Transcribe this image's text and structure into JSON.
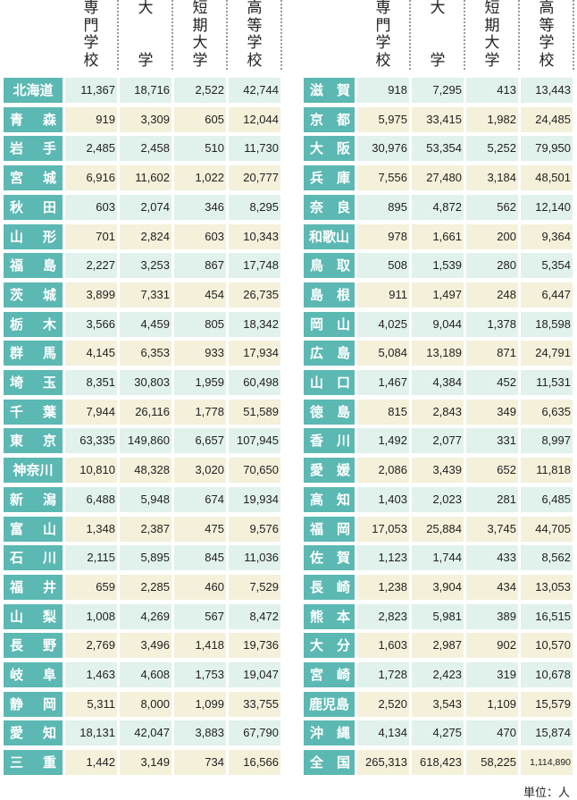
{
  "headers": [
    [
      "専",
      "門",
      "学",
      "校"
    ],
    [
      "大",
      "学"
    ],
    [
      "短",
      "期",
      "大",
      "学"
    ],
    [
      "高",
      "等",
      "学",
      "校"
    ]
  ],
  "left": [
    [
      "北海道",
      "11,367",
      "18,716",
      "2,522",
      "42,744"
    ],
    [
      "青　森",
      "919",
      "3,309",
      "605",
      "12,044"
    ],
    [
      "岩　手",
      "2,485",
      "2,458",
      "510",
      "11,730"
    ],
    [
      "宮　城",
      "6,916",
      "11,602",
      "1,022",
      "20,777"
    ],
    [
      "秋　田",
      "603",
      "2,074",
      "346",
      "8,295"
    ],
    [
      "山　形",
      "701",
      "2,824",
      "603",
      "10,343"
    ],
    [
      "福　島",
      "2,227",
      "3,253",
      "867",
      "17,748"
    ],
    [
      "茨　城",
      "3,899",
      "7,331",
      "454",
      "26,735"
    ],
    [
      "栃　木",
      "3,566",
      "4,459",
      "805",
      "18,342"
    ],
    [
      "群　馬",
      "4,145",
      "6,353",
      "933",
      "17,934"
    ],
    [
      "埼　玉",
      "8,351",
      "30,803",
      "1,959",
      "60,498"
    ],
    [
      "千　葉",
      "7,944",
      "26,116",
      "1,778",
      "51,589"
    ],
    [
      "東　京",
      "63,335",
      "149,860",
      "6,657",
      "107,945"
    ],
    [
      "神奈川",
      "10,810",
      "48,328",
      "3,020",
      "70,650"
    ],
    [
      "新　潟",
      "6,488",
      "5,948",
      "674",
      "19,934"
    ],
    [
      "富　山",
      "1,348",
      "2,387",
      "475",
      "9,576"
    ],
    [
      "石　川",
      "2,115",
      "5,895",
      "845",
      "11,036"
    ],
    [
      "福　井",
      "659",
      "2,285",
      "460",
      "7,529"
    ],
    [
      "山　梨",
      "1,008",
      "4,269",
      "567",
      "8,472"
    ],
    [
      "長　野",
      "2,769",
      "3,496",
      "1,418",
      "19,736"
    ],
    [
      "岐　阜",
      "1,463",
      "4,608",
      "1,753",
      "19,047"
    ],
    [
      "静　岡",
      "5,311",
      "8,000",
      "1,099",
      "33,755"
    ],
    [
      "愛　知",
      "18,131",
      "42,047",
      "3,883",
      "67,790"
    ],
    [
      "三　重",
      "1,442",
      "3,149",
      "734",
      "16,566"
    ]
  ],
  "right": [
    [
      "滋　賀",
      "918",
      "7,295",
      "413",
      "13,443"
    ],
    [
      "京　都",
      "5,975",
      "33,415",
      "1,982",
      "24,485"
    ],
    [
      "大　阪",
      "30,976",
      "53,354",
      "5,252",
      "79,950"
    ],
    [
      "兵　庫",
      "7,556",
      "27,480",
      "3,184",
      "48,501"
    ],
    [
      "奈　良",
      "895",
      "4,872",
      "562",
      "12,140"
    ],
    [
      "和歌山",
      "978",
      "1,661",
      "200",
      "9,364"
    ],
    [
      "鳥　取",
      "508",
      "1,539",
      "280",
      "5,354"
    ],
    [
      "島　根",
      "911",
      "1,497",
      "248",
      "6,447"
    ],
    [
      "岡　山",
      "4,025",
      "9,044",
      "1,378",
      "18,598"
    ],
    [
      "広　島",
      "5,084",
      "13,189",
      "871",
      "24,791"
    ],
    [
      "山　口",
      "1,467",
      "4,384",
      "452",
      "11,531"
    ],
    [
      "徳　島",
      "815",
      "2,843",
      "349",
      "6,635"
    ],
    [
      "香　川",
      "1,492",
      "2,077",
      "331",
      "8,997"
    ],
    [
      "愛　媛",
      "2,086",
      "3,439",
      "652",
      "11,818"
    ],
    [
      "高　知",
      "1,403",
      "2,023",
      "281",
      "6,485"
    ],
    [
      "福　岡",
      "17,053",
      "25,884",
      "3,745",
      "44,705"
    ],
    [
      "佐　賀",
      "1,123",
      "1,744",
      "433",
      "8,562"
    ],
    [
      "長　崎",
      "1,238",
      "3,904",
      "434",
      "13,053"
    ],
    [
      "熊　本",
      "2,823",
      "5,981",
      "389",
      "16,515"
    ],
    [
      "大　分",
      "1,603",
      "2,987",
      "902",
      "10,570"
    ],
    [
      "宮　崎",
      "1,728",
      "2,423",
      "319",
      "10,678"
    ],
    [
      "鹿児島",
      "2,520",
      "3,543",
      "1,109",
      "15,579"
    ],
    [
      "沖　縄",
      "4,134",
      "4,275",
      "470",
      "15,874"
    ],
    [
      "全　国",
      "265,313",
      "618,423",
      "58,225",
      "1,114,890"
    ]
  ],
  "unit": "単位：人",
  "colors": {
    "label": "#5cb8b3",
    "row_mint": "#e1f1ec",
    "row_cream": "#f4f0da"
  }
}
